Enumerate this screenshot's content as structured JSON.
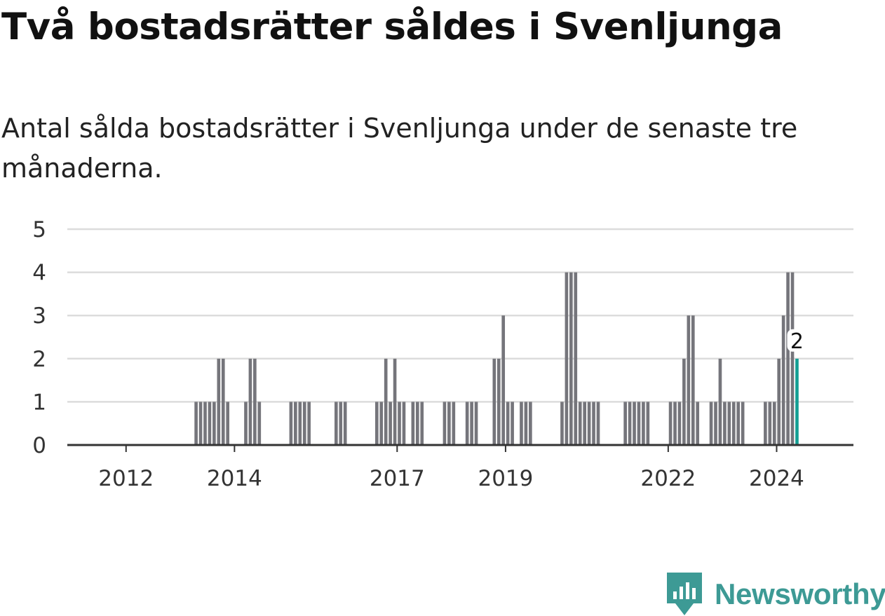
{
  "title": "Två bostadsrätter såldes i Svenljunga",
  "subtitle": "Antal sålda bostadsrätter i Svenljunga under de senaste tre månaderna.",
  "brand": {
    "name": "Newsworthy",
    "color": "#3d9a95",
    "icon": "newsworthy-chart-bubble-icon"
  },
  "chart_data": {
    "type": "bar",
    "xlabel": "",
    "ylabel": "",
    "ylim": [
      0,
      5
    ],
    "yticks": [
      0,
      1,
      2,
      3,
      4,
      5
    ],
    "xlim": [
      "2011-06",
      "2025-12"
    ],
    "xticks": [
      "2012",
      "2014",
      "2017",
      "2019",
      "2022",
      "2024"
    ],
    "grid": true,
    "bar_color": "#75757b",
    "highlight_color": "#139e93",
    "highlight_label": "2",
    "data": [
      [
        "2013-10",
        1
      ],
      [
        "2013-11",
        1
      ],
      [
        "2013-12",
        1
      ],
      [
        "2014-01",
        1
      ],
      [
        "2014-02",
        1
      ],
      [
        "2014-03",
        2
      ],
      [
        "2014-04",
        2
      ],
      [
        "2014-05",
        1
      ],
      [
        "2014-09",
        1
      ],
      [
        "2014-10",
        2
      ],
      [
        "2014-11",
        2
      ],
      [
        "2014-12",
        1
      ],
      [
        "2015-07",
        1
      ],
      [
        "2015-08",
        1
      ],
      [
        "2015-09",
        1
      ],
      [
        "2015-10",
        1
      ],
      [
        "2015-11",
        1
      ],
      [
        "2016-05",
        1
      ],
      [
        "2016-06",
        1
      ],
      [
        "2016-07",
        1
      ],
      [
        "2017-02",
        1
      ],
      [
        "2017-03",
        1
      ],
      [
        "2017-04",
        2
      ],
      [
        "2017-05",
        1
      ],
      [
        "2017-06",
        2
      ],
      [
        "2017-07",
        1
      ],
      [
        "2017-08",
        1
      ],
      [
        "2017-10",
        1
      ],
      [
        "2017-11",
        1
      ],
      [
        "2017-12",
        1
      ],
      [
        "2018-05",
        1
      ],
      [
        "2018-06",
        1
      ],
      [
        "2018-07",
        1
      ],
      [
        "2018-10",
        1
      ],
      [
        "2018-11",
        1
      ],
      [
        "2018-12",
        1
      ],
      [
        "2019-04",
        2
      ],
      [
        "2019-05",
        2
      ],
      [
        "2019-06",
        3
      ],
      [
        "2019-07",
        1
      ],
      [
        "2019-08",
        1
      ],
      [
        "2019-10",
        1
      ],
      [
        "2019-11",
        1
      ],
      [
        "2019-12",
        1
      ],
      [
        "2020-07",
        1
      ],
      [
        "2020-08",
        4
      ],
      [
        "2020-09",
        4
      ],
      [
        "2020-10",
        4
      ],
      [
        "2020-11",
        1
      ],
      [
        "2020-12",
        1
      ],
      [
        "2021-01",
        1
      ],
      [
        "2021-02",
        1
      ],
      [
        "2021-03",
        1
      ],
      [
        "2021-09",
        1
      ],
      [
        "2021-10",
        1
      ],
      [
        "2021-11",
        1
      ],
      [
        "2021-12",
        1
      ],
      [
        "2022-01",
        1
      ],
      [
        "2022-02",
        1
      ],
      [
        "2022-07",
        1
      ],
      [
        "2022-08",
        1
      ],
      [
        "2022-09",
        1
      ],
      [
        "2022-10",
        2
      ],
      [
        "2022-11",
        3
      ],
      [
        "2022-12",
        3
      ],
      [
        "2023-01",
        1
      ],
      [
        "2023-04",
        1
      ],
      [
        "2023-05",
        1
      ],
      [
        "2023-06",
        2
      ],
      [
        "2023-07",
        1
      ],
      [
        "2023-08",
        1
      ],
      [
        "2023-09",
        1
      ],
      [
        "2023-10",
        1
      ],
      [
        "2023-11",
        1
      ],
      [
        "2024-04",
        1
      ],
      [
        "2024-05",
        1
      ],
      [
        "2024-06",
        1
      ],
      [
        "2024-07",
        2
      ],
      [
        "2024-08",
        3
      ],
      [
        "2024-09",
        4
      ],
      [
        "2024-10",
        4
      ],
      [
        "2024-11",
        2
      ]
    ]
  }
}
